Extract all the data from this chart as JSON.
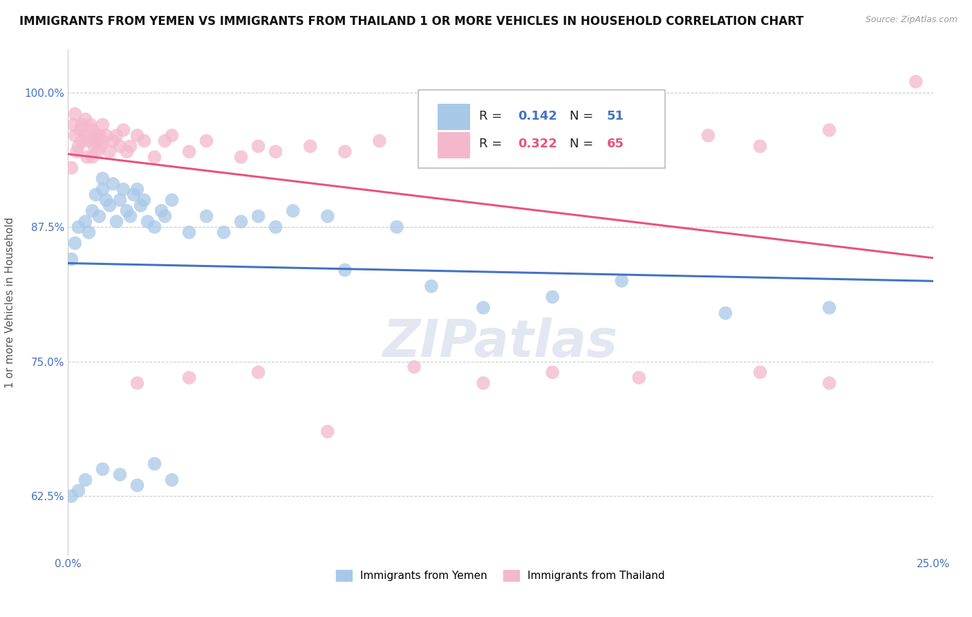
{
  "title": "IMMIGRANTS FROM YEMEN VS IMMIGRANTS FROM THAILAND 1 OR MORE VEHICLES IN HOUSEHOLD CORRELATION CHART",
  "source": "Source: ZipAtlas.com",
  "ylabel": "1 or more Vehicles in Household",
  "xlim": [
    0.0,
    25.0
  ],
  "ylim": [
    57.0,
    104.0
  ],
  "yticks": [
    62.5,
    75.0,
    87.5,
    100.0
  ],
  "xticks": [
    0.0,
    5.0,
    10.0,
    15.0,
    20.0,
    25.0
  ],
  "xtick_labels": [
    "0.0%",
    "",
    "",
    "",
    "",
    "25.0%"
  ],
  "ytick_labels": [
    "62.5%",
    "75.0%",
    "87.5%",
    "100.0%"
  ],
  "legend_labels": [
    "Immigrants from Yemen",
    "Immigrants from Thailand"
  ],
  "r_yemen": 0.142,
  "n_yemen": 51,
  "r_thailand": 0.322,
  "n_thailand": 65,
  "color_yemen": "#a8c8e8",
  "color_thailand": "#f4b8cc",
  "line_color_yemen": "#4472c4",
  "line_color_thailand": "#e8537a",
  "watermark": "ZIPatlas",
  "title_fontsize": 12,
  "axis_fontsize": 11,
  "yemen_x": [
    0.1,
    0.2,
    0.3,
    0.5,
    0.6,
    0.7,
    0.8,
    0.9,
    1.0,
    1.0,
    1.1,
    1.2,
    1.3,
    1.4,
    1.5,
    1.6,
    1.7,
    1.8,
    1.9,
    2.0,
    2.1,
    2.2,
    2.3,
    2.5,
    2.7,
    2.8,
    3.0,
    3.5,
    4.0,
    4.5,
    5.0,
    5.5,
    6.0,
    6.5,
    7.5,
    8.0,
    9.5,
    10.5,
    12.0,
    14.0,
    16.0,
    19.0,
    22.0,
    0.1,
    0.3,
    0.5,
    1.0,
    1.5,
    2.0,
    2.5,
    3.0
  ],
  "yemen_y": [
    84.5,
    86.0,
    87.5,
    88.0,
    87.0,
    89.0,
    90.5,
    88.5,
    92.0,
    91.0,
    90.0,
    89.5,
    91.5,
    88.0,
    90.0,
    91.0,
    89.0,
    88.5,
    90.5,
    91.0,
    89.5,
    90.0,
    88.0,
    87.5,
    89.0,
    88.5,
    90.0,
    87.0,
    88.5,
    87.0,
    88.0,
    88.5,
    87.5,
    89.0,
    88.5,
    83.5,
    87.5,
    82.0,
    80.0,
    81.0,
    82.5,
    79.5,
    80.0,
    62.5,
    63.0,
    64.0,
    65.0,
    64.5,
    63.5,
    65.5,
    64.0
  ],
  "thailand_x": [
    0.1,
    0.15,
    0.2,
    0.2,
    0.25,
    0.3,
    0.35,
    0.4,
    0.4,
    0.5,
    0.5,
    0.55,
    0.6,
    0.65,
    0.7,
    0.7,
    0.75,
    0.8,
    0.8,
    0.85,
    0.9,
    0.95,
    1.0,
    1.0,
    1.1,
    1.2,
    1.3,
    1.4,
    1.5,
    1.6,
    1.7,
    1.8,
    2.0,
    2.2,
    2.5,
    2.8,
    3.0,
    3.5,
    4.0,
    5.0,
    5.5,
    6.0,
    7.0,
    8.0,
    9.0,
    10.5,
    12.0,
    13.5,
    15.0,
    16.0,
    17.0,
    18.5,
    20.0,
    22.0,
    24.5,
    2.0,
    3.5,
    5.5,
    7.5,
    10.0,
    12.0,
    14.0,
    16.5,
    20.0,
    22.0
  ],
  "thailand_y": [
    93.0,
    97.0,
    96.0,
    98.0,
    94.5,
    95.0,
    96.5,
    97.0,
    95.5,
    97.5,
    96.0,
    94.0,
    95.5,
    97.0,
    96.5,
    94.0,
    95.0,
    96.0,
    95.5,
    94.5,
    96.0,
    95.0,
    95.5,
    97.0,
    96.0,
    94.5,
    95.5,
    96.0,
    95.0,
    96.5,
    94.5,
    95.0,
    96.0,
    95.5,
    94.0,
    95.5,
    96.0,
    94.5,
    95.5,
    94.0,
    95.0,
    94.5,
    95.0,
    94.5,
    95.5,
    94.0,
    95.5,
    96.0,
    95.5,
    95.0,
    94.5,
    96.0,
    95.0,
    96.5,
    101.0,
    73.0,
    73.5,
    74.0,
    68.5,
    74.5,
    73.0,
    74.0,
    73.5,
    74.0,
    73.0
  ]
}
